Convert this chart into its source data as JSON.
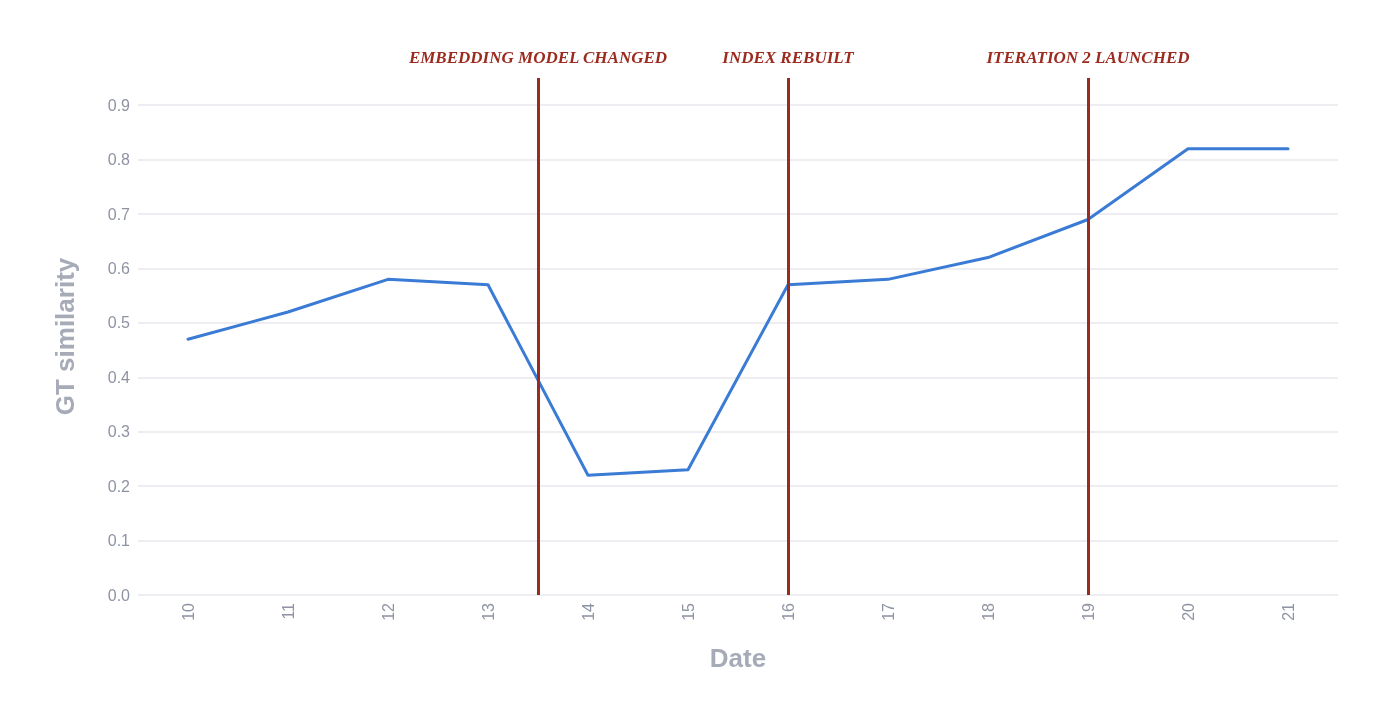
{
  "chart_data": {
    "type": "line",
    "xlabel": "Date",
    "ylabel": "GT similarity",
    "x": [
      10,
      11,
      12,
      13,
      14,
      15,
      16,
      17,
      18,
      19,
      20,
      21
    ],
    "series": [
      {
        "color": "#3a7bd5",
        "values": [
          0.47,
          0.52,
          0.58,
          0.57,
          0.22,
          0.23,
          0.57,
          0.58,
          0.62,
          0.69,
          0.82,
          0.82
        ]
      }
    ],
    "xlim": [
      9.5,
      21.5
    ],
    "xticks": [
      10,
      11,
      12,
      13,
      14,
      15,
      16,
      17,
      18,
      19,
      20,
      21
    ],
    "ylim": [
      0,
      0.95
    ],
    "yticks": [
      {
        "value": 0,
        "label": "0.0"
      },
      0.1,
      0.2,
      0.3,
      0.4,
      0.5,
      0.6,
      0.7,
      0.8,
      0.9
    ],
    "grid": "y",
    "marker": "none",
    "line_style": "solid",
    "ref_lines": [
      {
        "axis": "x",
        "value": 13.5,
        "label": "EMBEDDING MODEL CHANGED",
        "color": "#9b2a1f"
      },
      {
        "axis": "x",
        "value": 16,
        "label": "INDEX REBUILT",
        "color": "#9b2a1f"
      },
      {
        "axis": "x",
        "value": 19,
        "label": "ITERATION 2 LAUNCHED",
        "color": "#9b2a1f"
      }
    ]
  }
}
